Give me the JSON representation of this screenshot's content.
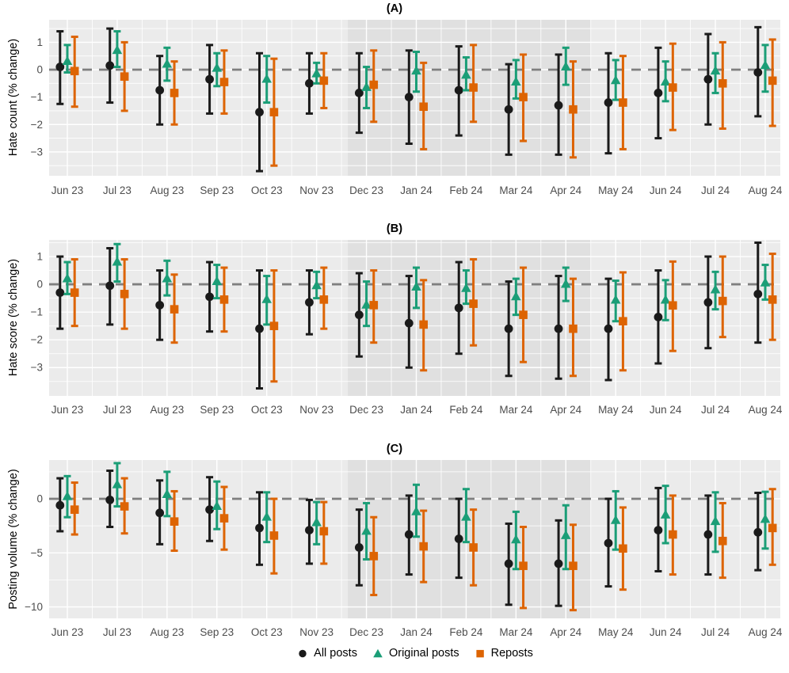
{
  "figure": {
    "panels": [
      {
        "label": "(A)",
        "ylabel": "Hate count (% change)"
      },
      {
        "label": "(B)",
        "ylabel": "Hate score (% change)"
      },
      {
        "label": "(C)",
        "ylabel": "Posting volume (% change)"
      }
    ]
  },
  "legend": {
    "items": [
      {
        "label": "All posts",
        "marker": "circle",
        "color": "#1a1a1a"
      },
      {
        "label": "Original posts",
        "marker": "triangle",
        "color": "#1b9e77"
      },
      {
        "label": "Reposts",
        "marker": "square",
        "color": "#dd6403"
      }
    ]
  },
  "colors": {
    "all_posts": "#1a1a1a",
    "original_posts": "#1b9e77",
    "reposts": "#dd6403",
    "panel_bg": "#ebebeb",
    "shaded_bg": "#e0e0e0",
    "grid_major": "#ffffff",
    "grid_minor": "#f5f5f5",
    "zero_line": "#7f7f7f",
    "tick_text": "#4d4d4d"
  },
  "chart_data": [
    {
      "type": "pointrange",
      "title": "(A)",
      "ylabel": "Hate count (% change)",
      "categories": [
        "Jun 23",
        "Jul 23",
        "Aug 23",
        "Sep 23",
        "Oct 23",
        "Nov 23",
        "Dec 23",
        "Jan 24",
        "Feb 24",
        "Mar 24",
        "Apr 24",
        "May 24",
        "Jun 24",
        "Jul 24",
        "Aug 24"
      ],
      "ylim": [
        -3.87,
        1.82
      ],
      "yticks": [
        1,
        0,
        -1,
        -2,
        -3
      ],
      "yticks_minor": [
        1.5,
        0.5,
        -0.5,
        -1.5,
        -2.5,
        -3.5
      ],
      "zero_line": 0,
      "grid": true,
      "shaded_region": {
        "from_category": "Dec 23",
        "to_category": "Apr 24"
      },
      "series": [
        {
          "name": "All posts",
          "marker": "circle",
          "color": "#1a1a1a",
          "est": [
            0.1,
            0.15,
            -0.75,
            -0.35,
            -1.55,
            -0.5,
            -0.85,
            -1.0,
            -0.75,
            -1.45,
            -1.3,
            -1.2,
            -0.85,
            -0.35,
            -0.1
          ],
          "lo": [
            -1.25,
            -1.2,
            -2.0,
            -1.6,
            -3.7,
            -1.6,
            -2.3,
            -2.7,
            -2.4,
            -3.1,
            -3.1,
            -3.05,
            -2.5,
            -2.0,
            -1.7
          ],
          "hi": [
            1.4,
            1.5,
            0.5,
            0.9,
            0.6,
            0.6,
            0.6,
            0.7,
            0.85,
            0.2,
            0.55,
            0.6,
            0.8,
            1.3,
            1.55
          ]
        },
        {
          "name": "Original posts",
          "marker": "triangle",
          "color": "#1b9e77",
          "est": [
            0.3,
            0.7,
            0.2,
            0.05,
            -0.35,
            -0.15,
            -0.65,
            -0.05,
            -0.2,
            -0.45,
            0.1,
            -0.4,
            -0.45,
            -0.05,
            0.15
          ],
          "lo": [
            -0.1,
            0.1,
            -0.4,
            -0.6,
            -1.2,
            -0.5,
            -1.4,
            -0.8,
            -0.75,
            -1.05,
            -0.55,
            -1.1,
            -1.15,
            -0.85,
            -0.8
          ],
          "hi": [
            0.9,
            1.4,
            0.8,
            0.6,
            0.5,
            0.25,
            0.1,
            0.65,
            0.45,
            0.35,
            0.8,
            0.35,
            0.3,
            0.6,
            0.9
          ]
        },
        {
          "name": "Reposts",
          "marker": "square",
          "color": "#dd6403",
          "est": [
            -0.05,
            -0.25,
            -0.85,
            -0.45,
            -1.55,
            -0.4,
            -0.55,
            -1.35,
            -0.65,
            -1.0,
            -1.45,
            -1.2,
            -0.65,
            -0.5,
            -0.4
          ],
          "lo": [
            -1.35,
            -1.5,
            -2.0,
            -1.6,
            -3.5,
            -1.4,
            -1.9,
            -2.9,
            -1.9,
            -2.6,
            -3.2,
            -2.9,
            -2.2,
            -2.15,
            -2.05
          ],
          "hi": [
            1.2,
            1.0,
            0.3,
            0.7,
            0.4,
            0.6,
            0.7,
            0.25,
            0.9,
            0.55,
            0.3,
            0.5,
            0.95,
            1.0,
            1.1
          ]
        }
      ]
    },
    {
      "type": "pointrange",
      "title": "(B)",
      "ylabel": "Hate score (% change)",
      "categories": [
        "Jun 23",
        "Jul 23",
        "Aug 23",
        "Sep 23",
        "Oct 23",
        "Nov 23",
        "Dec 23",
        "Jan 24",
        "Feb 24",
        "Mar 24",
        "Apr 24",
        "May 24",
        "Jun 24",
        "Jul 24",
        "Aug 24"
      ],
      "ylim": [
        -4.02,
        1.6
      ],
      "yticks": [
        1,
        0,
        -1,
        -2,
        -3
      ],
      "yticks_minor": [
        1.5,
        0.5,
        -0.5,
        -1.5,
        -2.5,
        -3.5
      ],
      "zero_line": 0,
      "grid": true,
      "shaded_region": {
        "from_category": "Dec 23",
        "to_category": "Apr 24"
      },
      "series": [
        {
          "name": "All posts",
          "marker": "circle",
          "color": "#1a1a1a",
          "est": [
            -0.3,
            -0.05,
            -0.75,
            -0.45,
            -1.6,
            -0.65,
            -1.1,
            -1.4,
            -0.85,
            -1.6,
            -1.6,
            -1.6,
            -1.18,
            -0.65,
            -0.35
          ],
          "lo": [
            -1.6,
            -1.45,
            -2.0,
            -1.7,
            -3.75,
            -1.8,
            -2.6,
            -3.0,
            -2.5,
            -3.3,
            -3.4,
            -3.45,
            -2.85,
            -2.3,
            -2.1
          ],
          "hi": [
            1.0,
            1.3,
            0.5,
            0.8,
            0.5,
            0.5,
            0.4,
            0.3,
            0.8,
            0.1,
            0.3,
            0.2,
            0.5,
            1.0,
            1.5
          ]
        },
        {
          "name": "Original posts",
          "marker": "triangle",
          "color": "#1b9e77",
          "est": [
            0.2,
            0.8,
            0.2,
            0.1,
            -0.55,
            -0.05,
            -0.75,
            -0.1,
            -0.15,
            -0.45,
            0.0,
            -0.57,
            -0.57,
            -0.2,
            0.05
          ],
          "lo": [
            -0.35,
            0.1,
            -0.4,
            -0.5,
            -1.45,
            -0.5,
            -1.5,
            -0.85,
            -0.7,
            -1.1,
            -0.6,
            -1.33,
            -1.29,
            -0.9,
            -0.55
          ],
          "hi": [
            0.8,
            1.45,
            0.85,
            0.7,
            0.3,
            0.45,
            0.1,
            0.6,
            0.5,
            0.2,
            0.6,
            0.13,
            0.15,
            0.45,
            0.7
          ]
        },
        {
          "name": "Reposts",
          "marker": "square",
          "color": "#dd6403",
          "est": [
            -0.3,
            -0.35,
            -0.9,
            -0.55,
            -1.5,
            -0.55,
            -0.75,
            -1.45,
            -0.7,
            -1.1,
            -1.6,
            -1.33,
            -0.76,
            -0.6,
            -0.55
          ],
          "lo": [
            -1.5,
            -1.6,
            -2.1,
            -1.7,
            -3.5,
            -1.6,
            -2.1,
            -3.1,
            -2.2,
            -2.8,
            -3.3,
            -3.1,
            -2.4,
            -1.9,
            -2.0
          ],
          "hi": [
            0.9,
            0.9,
            0.35,
            0.6,
            0.5,
            0.6,
            0.5,
            0.15,
            0.9,
            0.6,
            0.2,
            0.43,
            0.82,
            1.0,
            1.1
          ]
        }
      ]
    },
    {
      "type": "pointrange",
      "title": "(C)",
      "ylabel": "Posting volume (% change)",
      "categories": [
        "Jun 23",
        "Jul 23",
        "Aug 23",
        "Sep 23",
        "Oct 23",
        "Nov 23",
        "Dec 23",
        "Jan 24",
        "Feb 24",
        "Mar 24",
        "Apr 24",
        "May 24",
        "Jun 24",
        "Jul 24",
        "Aug 24"
      ],
      "ylim": [
        -11.06,
        3.59
      ],
      "yticks": [
        0,
        -5,
        -10
      ],
      "yticks_minor": [
        2.5,
        -2.5,
        -7.5
      ],
      "zero_line": 0,
      "grid": true,
      "shaded_region": {
        "from_category": "Dec 23",
        "to_category": "Apr 24"
      },
      "series": [
        {
          "name": "All posts",
          "marker": "circle",
          "color": "#1a1a1a",
          "est": [
            -0.6,
            -0.1,
            -1.3,
            -1.0,
            -2.7,
            -2.9,
            -4.5,
            -3.3,
            -3.7,
            -6.0,
            -6.0,
            -4.1,
            -2.9,
            -3.3,
            -3.1
          ],
          "lo": [
            -3.0,
            -2.6,
            -4.2,
            -3.9,
            -6.1,
            -6.0,
            -8.0,
            -7.0,
            -7.3,
            -9.8,
            -9.9,
            -8.1,
            -6.7,
            -7.0,
            -6.6
          ],
          "hi": [
            1.9,
            2.6,
            1.7,
            2.0,
            0.6,
            -0.1,
            -1.0,
            0.3,
            0.0,
            -2.3,
            -2.0,
            0.0,
            1.0,
            0.3,
            0.55
          ]
        },
        {
          "name": "Original posts",
          "marker": "triangle",
          "color": "#1b9e77",
          "est": [
            0.2,
            1.3,
            0.4,
            -0.7,
            -1.7,
            -2.2,
            -3.0,
            -1.2,
            -1.7,
            -3.8,
            -3.4,
            -2.0,
            -1.5,
            -2.1,
            -1.9
          ],
          "lo": [
            -1.7,
            -0.7,
            -1.6,
            -2.8,
            -4.0,
            -4.2,
            -5.6,
            -3.5,
            -4.0,
            -6.5,
            -6.5,
            -4.7,
            -4.1,
            -4.9,
            -4.6
          ],
          "hi": [
            2.1,
            3.3,
            2.5,
            1.6,
            0.6,
            -0.3,
            -0.4,
            1.3,
            0.9,
            -1.2,
            -0.6,
            0.7,
            1.2,
            0.6,
            0.65
          ]
        },
        {
          "name": "Reposts",
          "marker": "square",
          "color": "#dd6403",
          "est": [
            -1.0,
            -0.7,
            -2.1,
            -1.8,
            -3.4,
            -3.0,
            -5.3,
            -4.4,
            -4.5,
            -6.2,
            -6.2,
            -4.6,
            -3.3,
            -3.9,
            -2.7
          ],
          "lo": [
            -3.3,
            -3.2,
            -4.8,
            -4.7,
            -6.9,
            -6.0,
            -8.9,
            -7.7,
            -8.0,
            -10.1,
            -10.3,
            -8.4,
            -7.0,
            -7.3,
            -6.1
          ],
          "hi": [
            1.5,
            1.9,
            0.7,
            1.1,
            0.0,
            -0.3,
            -1.7,
            -1.1,
            -1.0,
            -2.6,
            -2.4,
            -0.8,
            0.3,
            -0.4,
            0.9
          ]
        }
      ]
    }
  ]
}
